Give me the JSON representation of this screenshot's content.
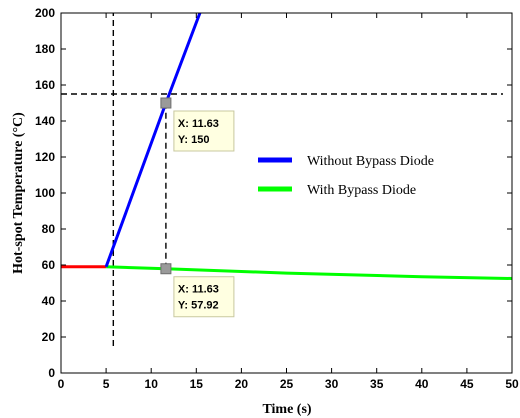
{
  "chart_data": {
    "type": "line",
    "xlabel": "Time (s)",
    "ylabel": "Hot-spot Temperature (°C)",
    "xlim": [
      0,
      50
    ],
    "ylim": [
      0,
      200
    ],
    "xticks": [
      0,
      5,
      10,
      15,
      20,
      25,
      30,
      35,
      40,
      45,
      50
    ],
    "yticks": [
      0,
      20,
      40,
      60,
      80,
      100,
      120,
      140,
      160,
      180,
      200
    ],
    "grid": false,
    "legend_position": "center-right",
    "series": [
      {
        "name": "",
        "color": "#ff0000",
        "x": [
          0,
          5
        ],
        "y": [
          59,
          59
        ]
      },
      {
        "name": "Without Bypass Diode",
        "color": "#0000ff",
        "x": [
          5,
          11.63,
          15.4
        ],
        "y": [
          59,
          150,
          200
        ]
      },
      {
        "name": "With Bypass Diode",
        "color": "#00ff00",
        "x": [
          5,
          11.63,
          25,
          40,
          50
        ],
        "y": [
          59,
          57.92,
          55.5,
          53.5,
          52.5
        ]
      }
    ],
    "annotations": [
      {
        "x": 11.63,
        "y": 150,
        "label_x": "X: 11.63",
        "label_y": "Y: 150"
      },
      {
        "x": 11.63,
        "y": 57.92,
        "label_x": "X: 11.63",
        "label_y": "Y: 57.92"
      }
    ],
    "reference_lines": [
      {
        "orientation": "vertical",
        "x": 5.8,
        "y_from": 15,
        "y_to": 200
      },
      {
        "orientation": "vertical",
        "x": 11.63,
        "y_from": 57.92,
        "y_to": 150
      },
      {
        "orientation": "horizontal",
        "y": 155,
        "x_from": 0,
        "x_to": 49
      }
    ]
  }
}
